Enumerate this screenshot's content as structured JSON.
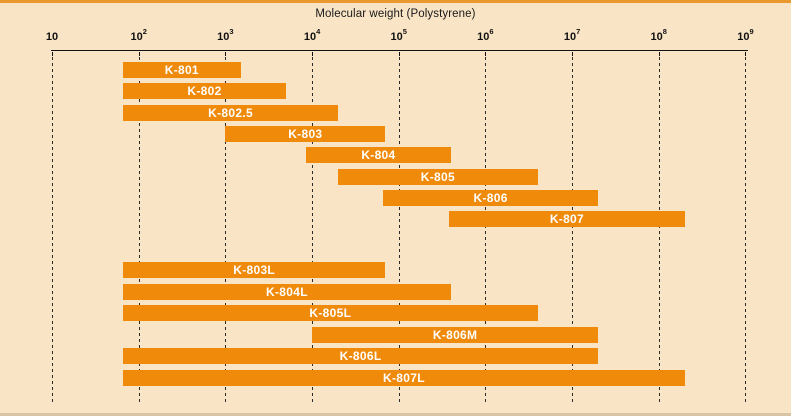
{
  "title": "Molecular weight (Polystyrene)",
  "axis": {
    "tick_base": "10",
    "tick_exponents": [
      "",
      "2",
      "3",
      "4",
      "5",
      "6",
      "7",
      "8",
      "9"
    ],
    "tick_values": [
      10,
      100,
      1000,
      10000,
      100000,
      1000000,
      10000000,
      100000000,
      1000000000
    ]
  },
  "colors": {
    "background": "#fae4c6",
    "bar": "#ef8a0b",
    "bar_label": "#ffffff",
    "top_border": "#e9992e",
    "axis_text": "#111111"
  },
  "chart_data": {
    "type": "bar",
    "subtype": "horizontal-range-log",
    "title": "Molecular weight (Polystyrene)",
    "xlabel": "Molecular weight (Polystyrene)",
    "x_scale": "log10",
    "xlim": [
      10,
      1000000000
    ],
    "grid": "vertical-dashed",
    "legend": "none",
    "series": [
      {
        "label": "K-801",
        "group": "standard",
        "mw_min": 66,
        "mw_max": 1500
      },
      {
        "label": "K-802",
        "group": "standard",
        "mw_min": 66,
        "mw_max": 5000
      },
      {
        "label": "K-802.5",
        "group": "standard",
        "mw_min": 66,
        "mw_max": 20000
      },
      {
        "label": "K-803",
        "group": "standard",
        "mw_min": 1000,
        "mw_max": 70000
      },
      {
        "label": "K-804",
        "group": "standard",
        "mw_min": 8500,
        "mw_max": 400000
      },
      {
        "label": "K-805",
        "group": "standard",
        "mw_min": 20000,
        "mw_max": 4000000
      },
      {
        "label": "K-806",
        "group": "standard",
        "mw_min": 66000,
        "mw_max": 20000000
      },
      {
        "label": "K-807",
        "group": "standard",
        "mw_min": 380000,
        "mw_max": 200000000
      },
      {
        "label": "K-803L",
        "group": "linear",
        "mw_min": 66,
        "mw_max": 70000
      },
      {
        "label": "K-804L",
        "group": "linear",
        "mw_min": 66,
        "mw_max": 400000
      },
      {
        "label": "K-805L",
        "group": "linear",
        "mw_min": 66,
        "mw_max": 4000000
      },
      {
        "label": "K-806M",
        "group": "linear",
        "mw_min": 10000,
        "mw_max": 20000000
      },
      {
        "label": "K-806L",
        "group": "linear",
        "mw_min": 66,
        "mw_max": 20000000
      },
      {
        "label": "K-807L",
        "group": "linear",
        "mw_min": 66,
        "mw_max": 200000000
      }
    ]
  }
}
